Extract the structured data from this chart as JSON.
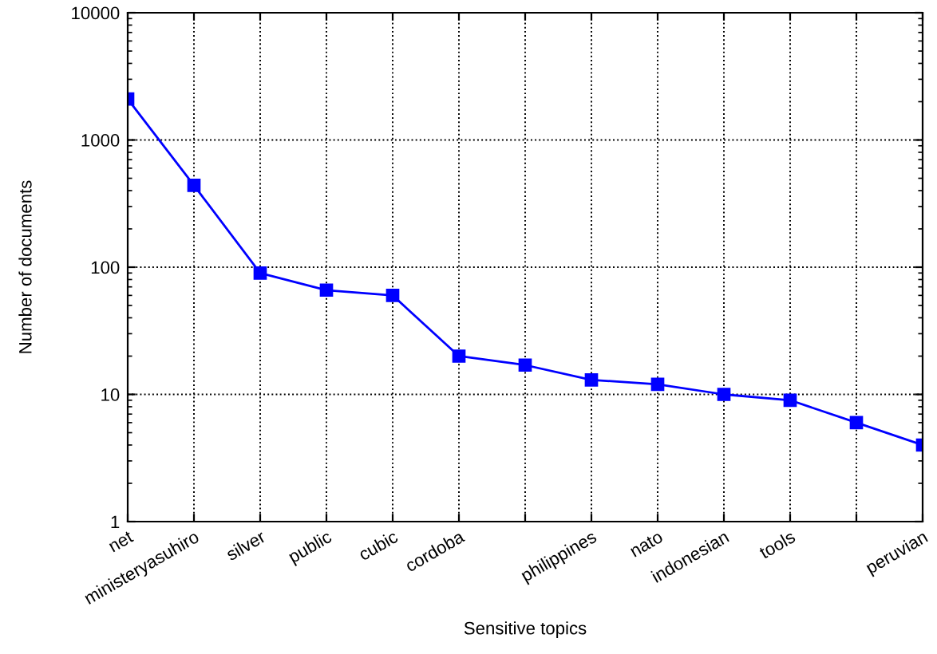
{
  "chart_data": {
    "type": "line",
    "xlabel": "Sensitive topics",
    "ylabel": "Number of documents",
    "categories": [
      "net",
      "ministeryasuhiro",
      "silver",
      "public",
      "cubic",
      "cordoba",
      null,
      "philippines",
      "nato",
      "indonesian",
      "tools",
      null,
      "peruvian"
    ],
    "series": [
      {
        "color": "#0000ff",
        "values": [
          2100,
          440,
          90,
          66,
          60,
          20,
          17,
          13,
          12,
          10,
          9,
          6,
          4
        ]
      }
    ],
    "log": true,
    "ylim": [
      1,
      10000
    ],
    "yticks": [
      1,
      10,
      100,
      1000,
      10000
    ],
    "grid": true,
    "marker": "square",
    "line_style": "solid"
  }
}
